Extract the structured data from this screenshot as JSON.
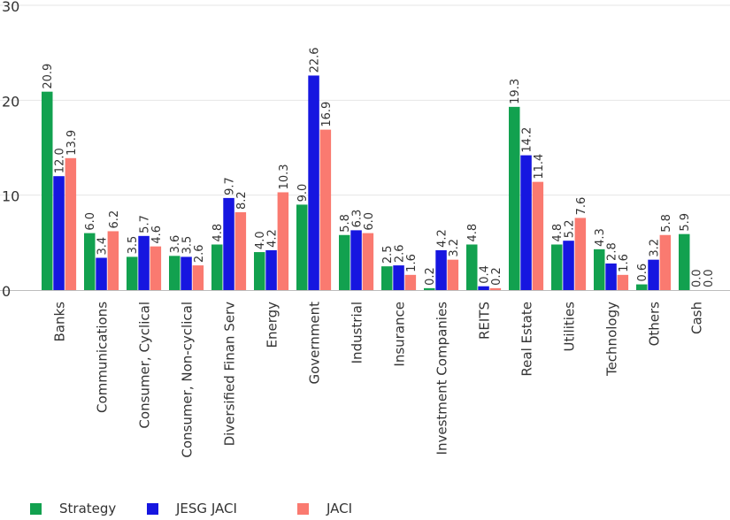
{
  "chart_data": {
    "type": "bar",
    "categories": [
      "Banks",
      "Communications",
      "Consumer, Cyclical",
      "Consumer, Non-cyclical",
      "Diversified Finan Serv",
      "Energy",
      "Government",
      "Industrial",
      "Insurance",
      "Investment Companies",
      "REITS",
      "Real Estate",
      "Utilities",
      "Technology",
      "Others",
      "Cash"
    ],
    "series": [
      {
        "name": "Strategy",
        "color": "#12a14f",
        "values": [
          20.9,
          6.0,
          3.5,
          3.6,
          4.8,
          4.0,
          9.0,
          5.8,
          2.5,
          0.2,
          4.8,
          19.3,
          4.8,
          4.3,
          0.6,
          5.9
        ]
      },
      {
        "name": "JESG JACI",
        "color": "#1616e0",
        "values": [
          12.0,
          3.4,
          5.7,
          3.5,
          9.7,
          4.2,
          22.6,
          6.3,
          2.6,
          4.2,
          0.4,
          14.2,
          5.2,
          2.8,
          3.2,
          0.0
        ]
      },
      {
        "name": "JACI",
        "color": "#fa7a70",
        "values": [
          13.9,
          6.2,
          4.6,
          2.6,
          8.2,
          10.3,
          16.9,
          6.0,
          1.6,
          3.2,
          0.2,
          11.4,
          7.6,
          1.6,
          5.8,
          0.0
        ]
      }
    ],
    "yticks": [
      "0",
      "10",
      "20",
      "30"
    ],
    "ylim": [
      0,
      30
    ],
    "grid": true,
    "legend_position": "bottom-left",
    "data_labels": true
  }
}
